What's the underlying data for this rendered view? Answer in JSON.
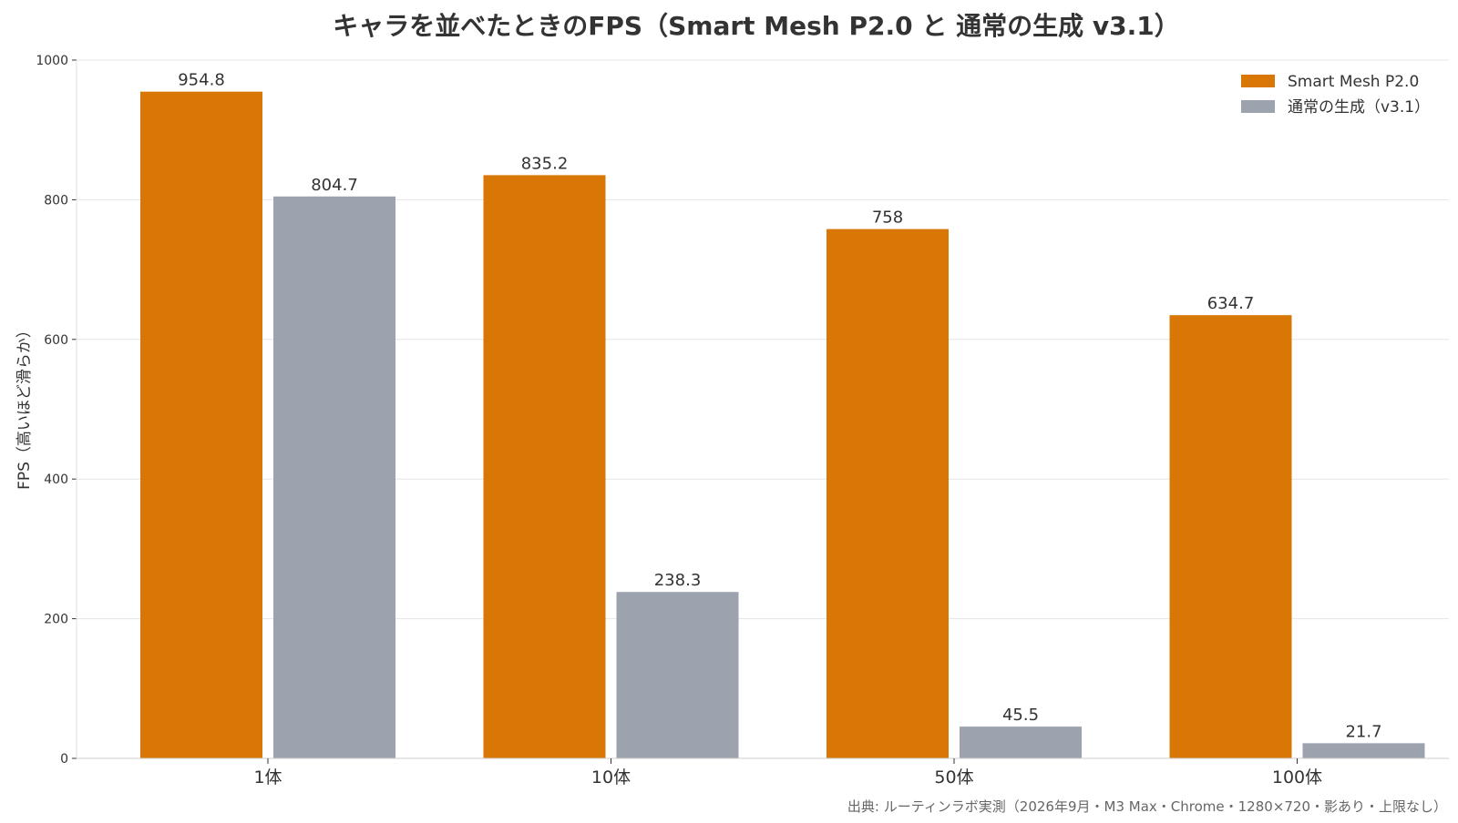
{
  "chart_data": {
    "type": "bar",
    "title": "キャラを並べたときのFPS（Smart Mesh P2.0 と 通常の生成 v3.1）",
    "xlabel": "",
    "ylabel": "FPS（高いほど滑らか）",
    "categories": [
      "1体",
      "10体",
      "50体",
      "100体"
    ],
    "series": [
      {
        "name": "Smart Mesh P2.0",
        "color": "#D97706",
        "values": [
          954.8,
          835.2,
          758,
          634.7
        ],
        "labels": [
          "954.8",
          "835.2",
          "758",
          "634.7"
        ]
      },
      {
        "name": "通常の生成（v3.1）",
        "color": "#9CA3AF",
        "values": [
          804.7,
          238.3,
          45.5,
          21.7
        ],
        "labels": [
          "804.7",
          "238.3",
          "45.5",
          "21.7"
        ]
      }
    ],
    "ylim": [
      0,
      1000
    ],
    "yticks": [
      0,
      200,
      400,
      600,
      800,
      1000
    ],
    "grid": true,
    "legend_position": "top-right",
    "source": "出典: ルーティンラボ実測（2026年9月・M3 Max・Chrome・1280×720・影あり・上限なし）"
  }
}
